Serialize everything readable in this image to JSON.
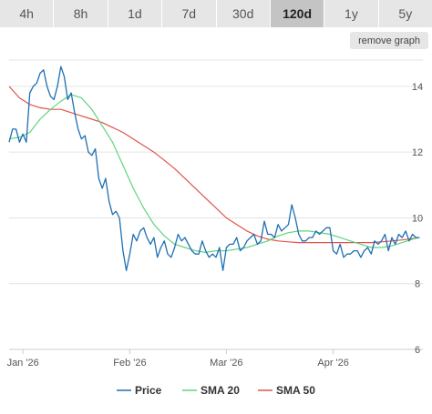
{
  "tabs": [
    {
      "label": "4h",
      "active": false
    },
    {
      "label": "8h",
      "active": false
    },
    {
      "label": "1d",
      "active": false
    },
    {
      "label": "7d",
      "active": false
    },
    {
      "label": "30d",
      "active": false
    },
    {
      "label": "120d",
      "active": true
    },
    {
      "label": "1y",
      "active": false
    },
    {
      "label": "5y",
      "active": false
    }
  ],
  "remove_graph_label": "remove graph",
  "chart_data": {
    "type": "line",
    "title": "",
    "xlabel": "",
    "ylabel": "",
    "ylim": [
      6,
      14.8
    ],
    "yticks": [
      6,
      8,
      10,
      12,
      14
    ],
    "x_ticks": [
      {
        "label": "Jan '26",
        "day": 1
      },
      {
        "label": "Feb '26",
        "day": 32
      },
      {
        "label": "Mar '26",
        "day": 60
      },
      {
        "label": "Apr '26",
        "day": 91
      }
    ],
    "xlim": [
      -3,
      117
    ],
    "grid": true,
    "legend_position": "bottom",
    "series": [
      {
        "name": "Price",
        "color": "#1f6fb2",
        "points": [
          [
            -3,
            12.3
          ],
          [
            -2,
            12.7
          ],
          [
            -1,
            12.7
          ],
          [
            0,
            12.3
          ],
          [
            1,
            12.55
          ],
          [
            2,
            12.3
          ],
          [
            3,
            13.8
          ],
          [
            4,
            14.0
          ],
          [
            5,
            14.1
          ],
          [
            6,
            14.4
          ],
          [
            7,
            14.5
          ],
          [
            8,
            14.0
          ],
          [
            9,
            13.7
          ],
          [
            10,
            13.6
          ],
          [
            11,
            14.0
          ],
          [
            12,
            14.6
          ],
          [
            13,
            14.3
          ],
          [
            14,
            13.6
          ],
          [
            15,
            13.8
          ],
          [
            16,
            13.2
          ],
          [
            17,
            12.7
          ],
          [
            18,
            12.4
          ],
          [
            19,
            12.5
          ],
          [
            20,
            12.0
          ],
          [
            21,
            11.9
          ],
          [
            22,
            12.1
          ],
          [
            23,
            11.2
          ],
          [
            24,
            10.9
          ],
          [
            25,
            11.2
          ],
          [
            26,
            10.5
          ],
          [
            27,
            10.1
          ],
          [
            28,
            10.2
          ],
          [
            29,
            10.0
          ],
          [
            30,
            9.0
          ],
          [
            31,
            8.4
          ],
          [
            32,
            8.9
          ],
          [
            33,
            9.5
          ],
          [
            34,
            9.3
          ],
          [
            35,
            9.6
          ],
          [
            36,
            9.7
          ],
          [
            37,
            9.4
          ],
          [
            38,
            9.2
          ],
          [
            39,
            9.4
          ],
          [
            40,
            8.8
          ],
          [
            41,
            9.1
          ],
          [
            42,
            9.3
          ],
          [
            43,
            8.9
          ],
          [
            44,
            8.8
          ],
          [
            45,
            9.1
          ],
          [
            46,
            9.5
          ],
          [
            47,
            9.3
          ],
          [
            48,
            9.4
          ],
          [
            49,
            9.2
          ],
          [
            50,
            9.0
          ],
          [
            51,
            8.9
          ],
          [
            52,
            8.9
          ],
          [
            53,
            9.3
          ],
          [
            54,
            9.0
          ],
          [
            55,
            8.8
          ],
          [
            56,
            8.9
          ],
          [
            57,
            8.8
          ],
          [
            58,
            9.1
          ],
          [
            59,
            8.4
          ],
          [
            60,
            9.1
          ],
          [
            61,
            9.2
          ],
          [
            62,
            9.2
          ],
          [
            63,
            9.4
          ],
          [
            64,
            9.0
          ],
          [
            65,
            9.1
          ],
          [
            66,
            9.3
          ],
          [
            67,
            9.4
          ],
          [
            68,
            9.5
          ],
          [
            69,
            9.2
          ],
          [
            70,
            9.3
          ],
          [
            71,
            9.9
          ],
          [
            72,
            9.5
          ],
          [
            73,
            9.5
          ],
          [
            74,
            9.4
          ],
          [
            75,
            9.8
          ],
          [
            76,
            9.6
          ],
          [
            77,
            9.7
          ],
          [
            78,
            9.8
          ],
          [
            79,
            10.4
          ],
          [
            80,
            10.0
          ],
          [
            81,
            9.5
          ],
          [
            82,
            9.3
          ],
          [
            83,
            9.3
          ],
          [
            84,
            9.4
          ],
          [
            85,
            9.4
          ],
          [
            86,
            9.6
          ],
          [
            87,
            9.5
          ],
          [
            88,
            9.6
          ],
          [
            89,
            9.7
          ],
          [
            90,
            9.7
          ],
          [
            91,
            9.0
          ],
          [
            92,
            8.9
          ],
          [
            93,
            9.2
          ],
          [
            94,
            8.8
          ],
          [
            95,
            8.9
          ],
          [
            96,
            8.9
          ],
          [
            97,
            9.0
          ],
          [
            98,
            9.0
          ],
          [
            99,
            8.8
          ],
          [
            100,
            9.0
          ],
          [
            101,
            9.1
          ],
          [
            102,
            8.9
          ],
          [
            103,
            9.3
          ],
          [
            104,
            9.2
          ],
          [
            105,
            9.3
          ],
          [
            106,
            9.5
          ],
          [
            107,
            9.0
          ],
          [
            108,
            9.4
          ],
          [
            109,
            9.2
          ],
          [
            110,
            9.5
          ],
          [
            111,
            9.4
          ],
          [
            112,
            9.6
          ],
          [
            113,
            9.3
          ],
          [
            114,
            9.5
          ],
          [
            115,
            9.4
          ],
          [
            116,
            9.4
          ]
        ]
      },
      {
        "name": "SMA 20",
        "color": "#5fd37f",
        "points": [
          [
            -3,
            12.4
          ],
          [
            0,
            12.45
          ],
          [
            3,
            12.6
          ],
          [
            6,
            13.0
          ],
          [
            9,
            13.3
          ],
          [
            12,
            13.55
          ],
          [
            15,
            13.75
          ],
          [
            18,
            13.65
          ],
          [
            21,
            13.3
          ],
          [
            24,
            12.8
          ],
          [
            27,
            12.3
          ],
          [
            30,
            11.6
          ],
          [
            33,
            10.9
          ],
          [
            36,
            10.3
          ],
          [
            39,
            9.8
          ],
          [
            42,
            9.45
          ],
          [
            45,
            9.2
          ],
          [
            48,
            9.1
          ],
          [
            51,
            9.0
          ],
          [
            54,
            8.95
          ],
          [
            57,
            9.0
          ],
          [
            60,
            9.0
          ],
          [
            63,
            9.05
          ],
          [
            66,
            9.1
          ],
          [
            69,
            9.2
          ],
          [
            72,
            9.3
          ],
          [
            75,
            9.45
          ],
          [
            78,
            9.55
          ],
          [
            81,
            9.6
          ],
          [
            84,
            9.6
          ],
          [
            87,
            9.55
          ],
          [
            90,
            9.5
          ],
          [
            93,
            9.4
          ],
          [
            96,
            9.3
          ],
          [
            99,
            9.2
          ],
          [
            102,
            9.1
          ],
          [
            105,
            9.1
          ],
          [
            108,
            9.15
          ],
          [
            111,
            9.25
          ],
          [
            114,
            9.35
          ],
          [
            116,
            9.4
          ]
        ]
      },
      {
        "name": "SMA 50",
        "color": "#e0534a",
        "points": [
          [
            -3,
            14.0
          ],
          [
            0,
            13.65
          ],
          [
            3,
            13.45
          ],
          [
            6,
            13.35
          ],
          [
            9,
            13.3
          ],
          [
            12,
            13.3
          ],
          [
            15,
            13.2
          ],
          [
            18,
            13.1
          ],
          [
            21,
            13.0
          ],
          [
            24,
            12.9
          ],
          [
            27,
            12.75
          ],
          [
            30,
            12.6
          ],
          [
            33,
            12.4
          ],
          [
            36,
            12.2
          ],
          [
            39,
            12.0
          ],
          [
            42,
            11.75
          ],
          [
            45,
            11.5
          ],
          [
            48,
            11.2
          ],
          [
            51,
            10.9
          ],
          [
            54,
            10.6
          ],
          [
            57,
            10.3
          ],
          [
            60,
            10.0
          ],
          [
            63,
            9.8
          ],
          [
            66,
            9.6
          ],
          [
            69,
            9.45
          ],
          [
            72,
            9.35
          ],
          [
            75,
            9.3
          ],
          [
            78,
            9.27
          ],
          [
            81,
            9.25
          ],
          [
            84,
            9.25
          ],
          [
            87,
            9.25
          ],
          [
            90,
            9.25
          ],
          [
            93,
            9.25
          ],
          [
            96,
            9.25
          ],
          [
            99,
            9.25
          ],
          [
            102,
            9.25
          ],
          [
            105,
            9.27
          ],
          [
            108,
            9.3
          ],
          [
            111,
            9.33
          ],
          [
            114,
            9.37
          ],
          [
            116,
            9.4
          ]
        ]
      }
    ]
  }
}
